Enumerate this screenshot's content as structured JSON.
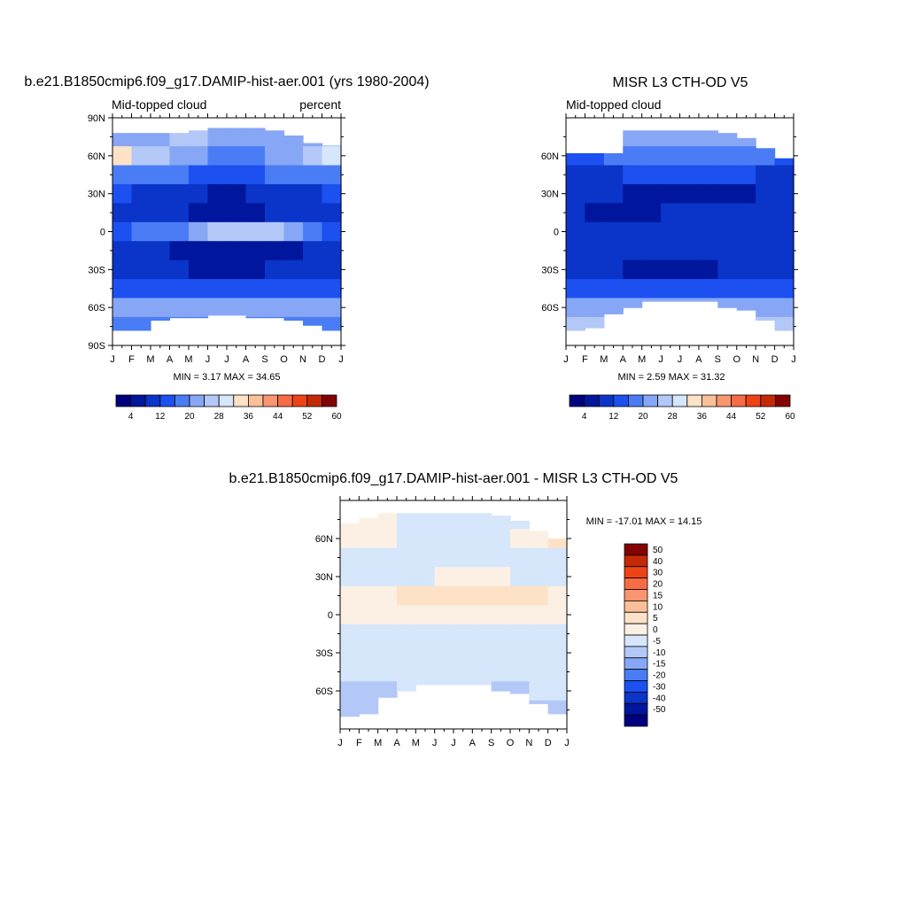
{
  "panels": {
    "model": {
      "title": "b.e21.B1850cmip6.f09_g17.DAMIP-hist-aer.001 (yrs 1980-2004)",
      "left_label": "Mid-topped cloud",
      "right_label": "percent",
      "stats": "MIN =   3.17 MAX =  34.65"
    },
    "obs": {
      "title": "MISR L3 CTH-OD V5",
      "left_label": "Mid-topped cloud",
      "stats": "MIN =   2.59 MAX =  31.32"
    },
    "diff": {
      "title": "b.e21.B1850cmip6.f09_g17.DAMIP-hist-aer.001 - MISR L3 CTH-OD V5",
      "stats": "MIN = -17.01 MAX =  14.15"
    }
  },
  "colorbars": {
    "absolute": {
      "tick_labels": [
        "4",
        "12",
        "20",
        "28",
        "36",
        "44",
        "52",
        "60"
      ],
      "colors": [
        "#00007f",
        "#00169d",
        "#0a35c8",
        "#1c50f0",
        "#4a7df5",
        "#87a7f6",
        "#b3c8f7",
        "#d6e6fb",
        "#fde2c8",
        "#fbc09a",
        "#f99670",
        "#f76b45",
        "#ee4414",
        "#c42a07",
        "#820303"
      ]
    },
    "difference": {
      "tick_labels": [
        "50",
        "40",
        "30",
        "20",
        "15",
        "10",
        "5",
        "0",
        "-5",
        "-10",
        "-15",
        "-20",
        "-30",
        "-40",
        "-50"
      ],
      "colors": [
        "#820303",
        "#c42a07",
        "#ee4414",
        "#f76b45",
        "#f99670",
        "#fbc09a",
        "#fde2c8",
        "#fcf0e4",
        "#d6e6fb",
        "#b3c8f7",
        "#87a7f6",
        "#4a7df5",
        "#1c50f0",
        "#0a35c8",
        "#00169d",
        "#00007f"
      ]
    }
  },
  "chart_data": [
    {
      "type": "heatmap",
      "title": "b.e21.B1850cmip6.f09_g17.DAMIP-hist-aer.001 (yrs 1980-2004)",
      "variable": "Mid-topped cloud",
      "units": "percent",
      "x": [
        "J",
        "F",
        "M",
        "A",
        "M",
        "J",
        "J",
        "A",
        "S",
        "O",
        "N",
        "D",
        "J"
      ],
      "y_ticks": [
        "90N",
        "60N",
        "30N",
        "0",
        "30S",
        "60S",
        "90S"
      ],
      "ylim": [
        -90,
        90
      ],
      "lat": [
        75,
        60,
        45,
        30,
        15,
        0,
        -15,
        -30,
        -45,
        -60,
        -75
      ],
      "values": [
        [
          20,
          20,
          22,
          24,
          25,
          23,
          22,
          21,
          21,
          22,
          22,
          21
        ],
        [
          32,
          26,
          24,
          23,
          20,
          19,
          19,
          19,
          20,
          22,
          26,
          30
        ],
        [
          19,
          18,
          17,
          17,
          15,
          14,
          14,
          15,
          16,
          17,
          18,
          19
        ],
        [
          12,
          10,
          10,
          9,
          8,
          7,
          7,
          8,
          9,
          10,
          11,
          12
        ],
        [
          10,
          8,
          8,
          8,
          7,
          6,
          6,
          7,
          8,
          9,
          10,
          11
        ],
        [
          15,
          16,
          17,
          19,
          22,
          25,
          27,
          26,
          24,
          20,
          16,
          15
        ],
        [
          10,
          9,
          8,
          7,
          6,
          5,
          4,
          5,
          6,
          7,
          8,
          9
        ],
        [
          9,
          9,
          8,
          8,
          7,
          7,
          7,
          7,
          8,
          8,
          9,
          9
        ],
        [
          14,
          14,
          13,
          13,
          12,
          12,
          12,
          12,
          13,
          13,
          14,
          14
        ],
        [
          20,
          21,
          22,
          22,
          21,
          21,
          22,
          22,
          21,
          21,
          20,
          20
        ],
        [
          19,
          19,
          18,
          17,
          17,
          17,
          18,
          19,
          19,
          19,
          18,
          18
        ]
      ],
      "missing_north_edge": [
        78,
        78,
        78,
        78,
        80,
        82,
        82,
        82,
        80,
        76,
        70,
        68
      ],
      "missing_south_edge": [
        -78,
        -78,
        -70,
        -68,
        -68,
        -66,
        -66,
        -68,
        -68,
        -70,
        -74,
        -78
      ],
      "min": 3.17,
      "max": 34.65
    },
    {
      "type": "heatmap",
      "title": "MISR L3 CTH-OD V5",
      "variable": "Mid-topped cloud",
      "x": [
        "J",
        "F",
        "M",
        "A",
        "M",
        "J",
        "J",
        "A",
        "S",
        "O",
        "N",
        "D",
        "J"
      ],
      "y_ticks": [
        "60N",
        "30N",
        "0",
        "30S",
        "60S"
      ],
      "ylim": [
        -90,
        90
      ],
      "lat": [
        75,
        60,
        45,
        30,
        15,
        0,
        -15,
        -30,
        -45,
        -60,
        -75
      ],
      "values": [
        [
          18,
          18,
          20,
          21,
          22,
          22,
          21,
          21,
          21,
          20,
          20,
          19
        ],
        [
          15,
          15,
          16,
          17,
          18,
          19,
          19,
          19,
          18,
          17,
          16,
          15
        ],
        [
          11,
          11,
          11,
          12,
          12,
          13,
          13,
          13,
          12,
          12,
          11,
          11
        ],
        [
          8,
          8,
          8,
          7,
          7,
          6,
          6,
          6,
          7,
          7,
          8,
          8
        ],
        [
          8,
          7,
          5,
          6,
          7,
          8,
          8,
          9,
          9,
          9,
          9,
          8
        ],
        [
          10,
          10,
          10,
          10,
          11,
          11,
          11,
          11,
          11,
          11,
          10,
          10
        ],
        [
          9,
          9,
          9,
          8,
          8,
          8,
          8,
          8,
          9,
          9,
          9,
          9
        ],
        [
          8,
          8,
          8,
          7,
          7,
          7,
          7,
          7,
          8,
          8,
          8,
          8
        ],
        [
          13,
          13,
          14,
          14,
          14,
          14,
          14,
          14,
          14,
          14,
          13,
          13
        ],
        [
          22,
          22,
          21,
          22,
          22,
          23,
          23,
          23,
          22,
          22,
          22,
          22
        ],
        [
          26,
          26,
          25,
          25,
          25,
          24,
          24,
          25,
          25,
          26,
          26,
          26
        ]
      ],
      "missing_north_edge": [
        62,
        62,
        62,
        80,
        80,
        80,
        80,
        80,
        78,
        74,
        66,
        58
      ],
      "missing_south_edge": [
        -78,
        -76,
        -65,
        -60,
        -55,
        -55,
        -55,
        -55,
        -60,
        -62,
        -70,
        -78
      ],
      "min": 2.59,
      "max": 31.32
    },
    {
      "type": "heatmap",
      "title": "b.e21.B1850cmip6.f09_g17.DAMIP-hist-aer.001 - MISR L3 CTH-OD V5",
      "x": [
        "J",
        "F",
        "M",
        "A",
        "M",
        "J",
        "J",
        "A",
        "S",
        "O",
        "N",
        "D",
        "J"
      ],
      "y_ticks": [
        "60N",
        "30N",
        "0",
        "30S",
        "60S"
      ],
      "ylim": [
        -90,
        90
      ],
      "lat": [
        75,
        60,
        45,
        30,
        15,
        0,
        -15,
        -30,
        -45,
        -60,
        -75
      ],
      "values": [
        [
          2,
          3,
          1,
          -1,
          -1,
          -2,
          -2,
          -2,
          -2,
          -1,
          1,
          2
        ],
        [
          3,
          4,
          2,
          -1,
          -2,
          -2,
          -2,
          -2,
          -1,
          1,
          4,
          5
        ],
        [
          -2,
          -2,
          -2,
          -2,
          -3,
          -3,
          -3,
          -3,
          -3,
          -3,
          -2,
          -2
        ],
        [
          -2,
          -2,
          -2,
          -2,
          -1,
          1,
          2,
          2,
          1,
          -1,
          -2,
          -2
        ],
        [
          3,
          3,
          4,
          5,
          6,
          6,
          6,
          6,
          6,
          6,
          5,
          4
        ],
        [
          3,
          3,
          3,
          4,
          4,
          4,
          4,
          4,
          4,
          3,
          3,
          3
        ],
        [
          -1,
          -1,
          -2,
          -2,
          -2,
          -2,
          -2,
          -2,
          -2,
          -2,
          -1,
          -1
        ],
        [
          -2,
          -2,
          -2,
          -2,
          -2,
          -2,
          -2,
          -2,
          -2,
          -2,
          -2,
          -2
        ],
        [
          -2,
          -2,
          -2,
          -2,
          -2,
          -2,
          -2,
          -2,
          -2,
          -2,
          -2,
          -2
        ],
        [
          -6,
          -6,
          -6,
          -5,
          -3,
          -3,
          -3,
          -3,
          -6,
          -6,
          -5,
          -5
        ],
        [
          -6,
          -6,
          -5,
          -5,
          -4,
          -4,
          -4,
          -4,
          -4,
          -6,
          -6,
          -6
        ]
      ],
      "missing_north_edge": [
        72,
        76,
        80,
        80,
        80,
        80,
        80,
        80,
        78,
        74,
        66,
        60
      ],
      "missing_south_edge": [
        -80,
        -78,
        -65,
        -60,
        -55,
        -55,
        -55,
        -55,
        -60,
        -62,
        -70,
        -78
      ],
      "min": -17.01,
      "max": 14.15
    }
  ]
}
